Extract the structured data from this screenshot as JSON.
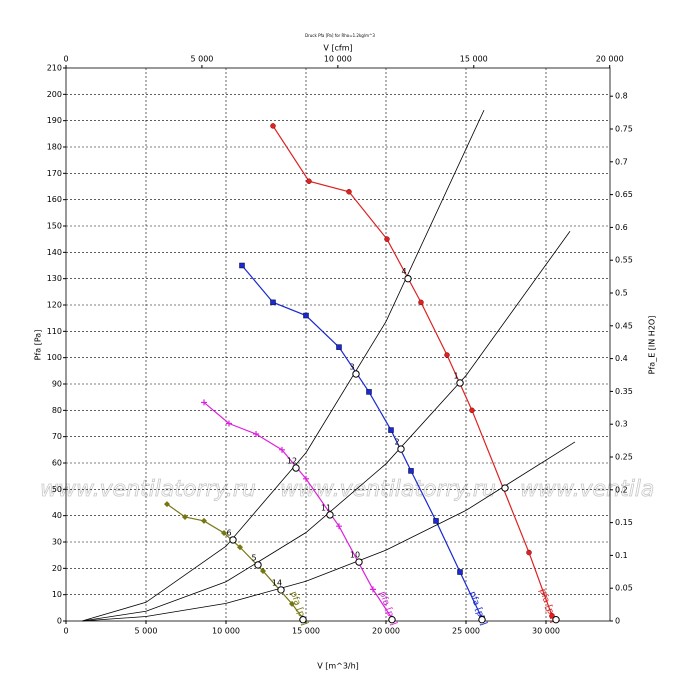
{
  "chart_data": {
    "type": "line",
    "title": "Druck Pfa [Pa] for Rho=1.2kg/m^3",
    "x_label": "V [m^3/h]",
    "x2_label": "V [cfm]",
    "y_label": "Pfa [Pa]",
    "y2_label": "Pfa_E [IN H2O]",
    "watermark": "www.ventilatorry.ru",
    "grid": true,
    "xlim": [
      0,
      34000
    ],
    "xticks": [
      0,
      {
        "value": 5000,
        "label": "5 000"
      },
      {
        "value": 10000,
        "label": "10 000"
      },
      {
        "value": 15000,
        "label": "15 000"
      },
      {
        "value": 20000,
        "label": "20 000"
      },
      {
        "value": 25000,
        "label": "25 000"
      },
      {
        "value": 30000,
        "label": "30 000"
      }
    ],
    "x2lim": [
      0,
      20011
    ],
    "x2ticks": [
      0,
      {
        "value": 5000,
        "label": "5 000"
      },
      {
        "value": 10000,
        "label": "10 000"
      },
      {
        "value": 15000,
        "label": "15 000"
      },
      {
        "value": 20000,
        "label": "20 000"
      }
    ],
    "ylim": [
      0,
      210
    ],
    "yticks": [
      0,
      10,
      20,
      30,
      40,
      50,
      60,
      70,
      80,
      90,
      100,
      110,
      120,
      130,
      140,
      150,
      160,
      170,
      180,
      190,
      200,
      210
    ],
    "y2lim": [
      0,
      0.843
    ],
    "y2ticks": [
      0,
      0.05,
      0.1,
      0.15,
      0.2,
      0.25,
      0.3,
      0.35,
      0.4,
      0.45,
      0.5,
      0.55,
      0.6,
      0.65,
      0.7,
      0.75,
      0.8
    ],
    "series": [
      {
        "name": "pfa [pa]",
        "color": "#dd2222",
        "marker": "circle",
        "x": [
          12937,
          15187,
          17687,
          20062,
          22187,
          23812,
          25375,
          28937,
          30375
        ],
        "values": [
          188,
          167,
          163,
          145,
          121,
          101,
          80,
          26,
          2
        ]
      },
      {
        "name": "pfa [pa]",
        "color": "#1a2ad0",
        "marker": "square",
        "x": [
          11000,
          12937,
          15000,
          17062,
          18937,
          20312,
          21562,
          23125,
          24625,
          26000
        ],
        "values": [
          135,
          121,
          116,
          104,
          87,
          72.5,
          57,
          38,
          18.6,
          1
        ]
      },
      {
        "name": "pfa [pa]",
        "color": "#dd22dd",
        "marker": "plus",
        "x": [
          8625,
          10187,
          11875,
          13500,
          15000,
          17062,
          19187,
          20375
        ],
        "values": [
          83,
          75,
          71,
          65,
          54,
          36,
          12,
          1
        ]
      },
      {
        "name": "pfa [pa]",
        "color": "#777711",
        "marker": "diamond",
        "x": [
          6312,
          7437,
          8625,
          9875,
          10875,
          12312,
          14125,
          14812
        ],
        "values": [
          44.4,
          39.5,
          38,
          33.4,
          28,
          19,
          6.5,
          1
        ]
      },
      {
        "color": "#000000",
        "marker": "none",
        "x": [
          1000,
          5000,
          10000,
          15000,
          20000,
          26125
        ],
        "values": [
          0,
          7.1,
          28.4,
          63.9,
          113.7,
          194
        ]
      },
      {
        "color": "#000000",
        "marker": "none",
        "x": [
          1000,
          5000,
          10000,
          15000,
          20000,
          25000,
          31500
        ],
        "values": [
          0,
          3.7,
          14.9,
          33.6,
          59.7,
          93.2,
          148
        ]
      },
      {
        "color": "#000000",
        "marker": "none",
        "x": [
          1000,
          5000,
          10000,
          15000,
          20000,
          25000,
          31812
        ],
        "values": [
          0,
          1.7,
          6.7,
          15.1,
          26.9,
          42,
          68
        ]
      }
    ],
    "points": {
      "x": [
        21375,
        24625,
        18125,
        20937,
        14375,
        16500,
        18312,
        10437,
        12000,
        13437,
        27437,
        14812,
        20375,
        26000,
        30625
      ],
      "values": [
        130,
        90.4,
        93.8,
        65.3,
        58.1,
        40.3,
        22.4,
        30.8,
        21.3,
        11.8,
        50.5,
        0.5,
        0.5,
        0.5,
        0.5
      ],
      "labels": [
        "4",
        "1",
        "3",
        "2",
        "12",
        "11",
        "10",
        "6",
        "5",
        "14",
        null,
        null,
        null,
        null,
        null
      ]
    }
  }
}
